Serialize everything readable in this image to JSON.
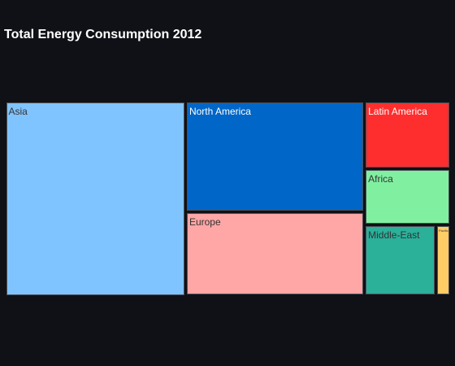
{
  "chart_data": {
    "type": "treemap",
    "title": "Total Energy Consumption 2012",
    "nodes": [
      {
        "name": "Asia",
        "value": 5000,
        "color": "#80c4ff",
        "text_color": "#333333"
      },
      {
        "name": "North America",
        "value": 2806,
        "color": "#0066c8",
        "text_color": "#ffffff"
      },
      {
        "name": "Europe",
        "value": 2142,
        "color": "#ffa6a6",
        "text_color": "#333333"
      },
      {
        "name": "Latin America",
        "value": 827,
        "color": "#ff2e2e",
        "text_color": "#ffffff"
      },
      {
        "name": "Africa",
        "value": 696,
        "color": "#80f0a0",
        "text_color": "#333333"
      },
      {
        "name": "Middle-East",
        "value": 717,
        "color": "#2bb09a",
        "text_color": "#333333"
      },
      {
        "name": "Pacific",
        "value": 151,
        "color": "#ffcc66",
        "text_color": "#333333"
      }
    ]
  }
}
